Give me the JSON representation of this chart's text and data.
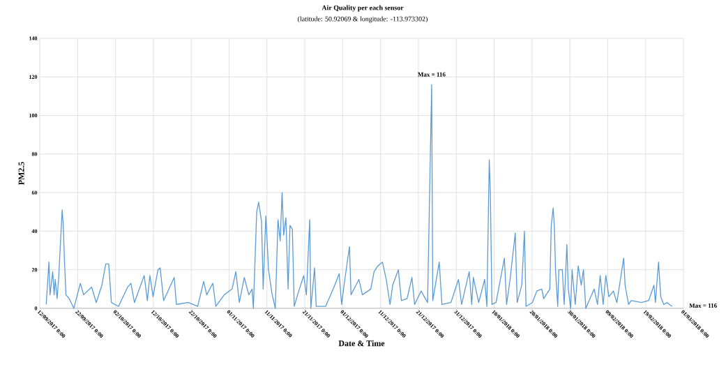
{
  "chart_data": {
    "type": "line",
    "title": "Air Quality per each sensor",
    "subtitle": "(latitude: 50.92069 & longitude: -113.973302)",
    "xlabel": "Date & Time",
    "ylabel": "PM2.5",
    "xlim": [
      "2017-09-12",
      "2018-03-01"
    ],
    "ylim": [
      0,
      140
    ],
    "xticks": [
      {
        "value": "2017-09-12",
        "label": "12/09/2017 0:00"
      },
      {
        "value": "2017-09-22",
        "label": "22/09/2017 0:00"
      },
      {
        "value": "2017-10-02",
        "label": "02/10/2017 0:00"
      },
      {
        "value": "2017-10-12",
        "label": "12/10/2017 0:00"
      },
      {
        "value": "2017-10-22",
        "label": "22/10/2017 0:00"
      },
      {
        "value": "2017-11-01",
        "label": "01/11/2017 0:00"
      },
      {
        "value": "2017-11-11",
        "label": "11/11/2017 0:00"
      },
      {
        "value": "2017-11-21",
        "label": "21/11/2017 0:00"
      },
      {
        "value": "2017-12-01",
        "label": "01/12/2017 0:00"
      },
      {
        "value": "2017-12-11",
        "label": "11/12/2017 0:00"
      },
      {
        "value": "2017-12-21",
        "label": "21/12/2017 0:00"
      },
      {
        "value": "2017-12-31",
        "label": "31/12/2017 0:00"
      },
      {
        "value": "2018-01-10",
        "label": "10/01/2018 0:00"
      },
      {
        "value": "2018-01-20",
        "label": "20/01/2018 0:00"
      },
      {
        "value": "2018-01-30",
        "label": "30/01/2018 0:00"
      },
      {
        "value": "2018-02-09",
        "label": "09/02/2018 0:00"
      },
      {
        "value": "2018-02-19",
        "label": "19/02/2018 0:00"
      },
      {
        "value": "2018-03-01",
        "label": "01/03/2018 0:00"
      }
    ],
    "yticks": [
      0,
      20,
      40,
      60,
      80,
      100,
      120,
      140
    ],
    "grid": true,
    "annotations": [
      {
        "text": "Max = 116",
        "x": "2017-12-24T12:00",
        "y": 116
      },
      "Max = 116"
    ],
    "series": [
      {
        "color": "#5b9bd5",
        "x": [
          "2017-09-13T17:00",
          "2017-09-14T10:00",
          "2017-09-14T17:00",
          "2017-09-15T10:00",
          "2017-09-15T19:00",
          "2017-09-16T02:00",
          "2017-09-16T14:00",
          "2017-09-17T00:00",
          "2017-09-17T22:00",
          "2017-09-18T05:00",
          "2017-09-18T12:00",
          "2017-09-18T22:00",
          "2017-09-19T19:00",
          "2017-09-21T00:00",
          "2017-09-22T17:00",
          "2017-09-23T14:00",
          "2017-09-25T17:00",
          "2017-09-26T22:00",
          "2017-09-28T10:00",
          "2017-09-29T10:00",
          "2017-09-30T05:00",
          "2017-09-30T22:00",
          "2017-10-02T19:00",
          "2017-10-05T05:00",
          "2017-10-06T02:00",
          "2017-10-07T00:00",
          "2017-10-09T14:00",
          "2017-10-10T10:00",
          "2017-10-11T02:00",
          "2017-10-11T22:00",
          "2017-10-13T05:00",
          "2017-10-13T19:00",
          "2017-10-14T17:00",
          "2017-10-17T12:00",
          "2017-10-18T02:00",
          "2017-10-21T05:00",
          "2017-10-23T17:00",
          "2017-10-25T07:00",
          "2017-10-26T02:00",
          "2017-10-27T17:00",
          "2017-10-28T12:00",
          "2017-10-30T17:00",
          "2017-11-01T19:00",
          "2017-11-02T19:00",
          "2017-11-03T17:00",
          "2017-11-05T00:00",
          "2017-11-06T05:00",
          "2017-11-07T02:00",
          "2017-11-07T10:00",
          "2017-11-08T07:00",
          "2017-11-08T19:00",
          "2017-11-09T14:00",
          "2017-11-10T00:00",
          "2017-11-10T17:00",
          "2017-11-11T10:00",
          "2017-11-12T07:00",
          "2017-11-13T05:00",
          "2017-11-13T22:00",
          "2017-11-14T12:00",
          "2017-11-15T00:00",
          "2017-11-15T10:00",
          "2017-11-16T00:00",
          "2017-11-16T14:00",
          "2017-11-17T02:00",
          "2017-11-17T17:00",
          "2017-11-18T05:00",
          "2017-11-19T02:00",
          "2017-11-20T17:00",
          "2017-11-21T10:00",
          "2017-11-22T07:00",
          "2017-11-22T14:00",
          "2017-11-23T14:00",
          "2017-11-24T00:00",
          "2017-11-26T12:00",
          "2017-11-28T17:00",
          "2017-11-30T02:00",
          "2017-11-30T17:00",
          "2017-12-01T12:00",
          "2017-12-02T19:00",
          "2017-12-03T05:00",
          "2017-12-05T07:00",
          "2017-12-06T05:00",
          "2017-12-08T10:00",
          "2017-12-09T07:00",
          "2017-12-10T07:00",
          "2017-12-11T12:00",
          "2017-12-12T12:00",
          "2017-12-13T12:00",
          "2017-12-14T05:00",
          "2017-12-15T17:00",
          "2017-12-16T12:00",
          "2017-12-18T00:00",
          "2017-12-19T07:00",
          "2017-12-20T00:00",
          "2017-12-21T17:00",
          "2017-12-23T10:00",
          "2017-12-24T12:00",
          "2017-12-24T19:00",
          "2017-12-26T12:00",
          "2017-12-27T05:00",
          "2017-12-29T14:00",
          "2017-12-31T14:00",
          "2018-01-01T10:00",
          "2018-01-03T10:00",
          "2018-01-04T02:00",
          "2018-01-04T12:00",
          "2018-01-05T22:00",
          "2018-01-07T12:00",
          "2018-01-08T02:00",
          "2018-01-08T17:00",
          "2018-01-09T00:00",
          "2018-01-09T10:00",
          "2018-01-10T12:00",
          "2018-01-12T17:00",
          "2018-01-13T07:00",
          "2018-01-14T05:00",
          "2018-01-15T14:00",
          "2018-01-16T02:00",
          "2018-01-17T07:00",
          "2018-01-18T00:00",
          "2018-01-18T10:00",
          "2018-01-20T02:00",
          "2018-01-21T07:00",
          "2018-01-22T14:00",
          "2018-01-23T02:00",
          "2018-01-24T17:00",
          "2018-01-25T02:00",
          "2018-01-25T14:00",
          "2018-01-25T22:00",
          "2018-01-26T05:00",
          "2018-01-26T19:00",
          "2018-01-27T02:00",
          "2018-01-28T00:00",
          "2018-01-28T12:00",
          "2018-01-29T05:00",
          "2018-01-29T14:00",
          "2018-01-30T05:00",
          "2018-01-30T14:00",
          "2018-01-31T10:00",
          "2018-02-01T05:00",
          "2018-02-02T00:00",
          "2018-02-02T14:00",
          "2018-02-03T05:00",
          "2018-02-05T10:00",
          "2018-02-06T07:00",
          "2018-02-07T00:00",
          "2018-02-07T19:00",
          "2018-02-08T12:00",
          "2018-02-09T07:00",
          "2018-02-10T12:00",
          "2018-02-11T10:00",
          "2018-02-13T05:00",
          "2018-02-13T14:00",
          "2018-02-14T12:00",
          "2018-02-15T05:00",
          "2018-02-17T22:00",
          "2018-02-19T19:00",
          "2018-02-21T05:00",
          "2018-02-21T14:00",
          "2018-02-22T10:00",
          "2018-02-23T00:00",
          "2018-02-23T19:00",
          "2018-02-24T17:00",
          "2018-02-25T07:00",
          "2018-02-26T00:00"
        ],
        "values": [
          2,
          24,
          7,
          19,
          7,
          15,
          5,
          16,
          51,
          43,
          26,
          7,
          5,
          0,
          13,
          7,
          11,
          3,
          12,
          23,
          23,
          3,
          1,
          11,
          13,
          3,
          17,
          4,
          17,
          6,
          20,
          21,
          4,
          16,
          2,
          3,
          1,
          14,
          7,
          13,
          1,
          7,
          10,
          19,
          3,
          16,
          7,
          10,
          0,
          50,
          55,
          45,
          10,
          48,
          20,
          8,
          0,
          46,
          35,
          60,
          38,
          47,
          10,
          43,
          41,
          1,
          7,
          17,
          7,
          46,
          0,
          21,
          1,
          1,
          11,
          18,
          2,
          14,
          32,
          7,
          15,
          7,
          10,
          19,
          22,
          24,
          15,
          2,
          12,
          20,
          4,
          5,
          16,
          2,
          9,
          3,
          116,
          4,
          24,
          2,
          3,
          15,
          2,
          19,
          2,
          16,
          3,
          15,
          1,
          77,
          60,
          2,
          3,
          26,
          2,
          15,
          39,
          3,
          12,
          40,
          1,
          3,
          9,
          10,
          5,
          10,
          43,
          52,
          42,
          20,
          1,
          20,
          20,
          2,
          33,
          10,
          0,
          20,
          2,
          22,
          12,
          20,
          0,
          10,
          2,
          17,
          2,
          17,
          6,
          9,
          3,
          26,
          12,
          2,
          4,
          3,
          4,
          12,
          3,
          24,
          6,
          2,
          3,
          2,
          1
        ]
      }
    ]
  }
}
